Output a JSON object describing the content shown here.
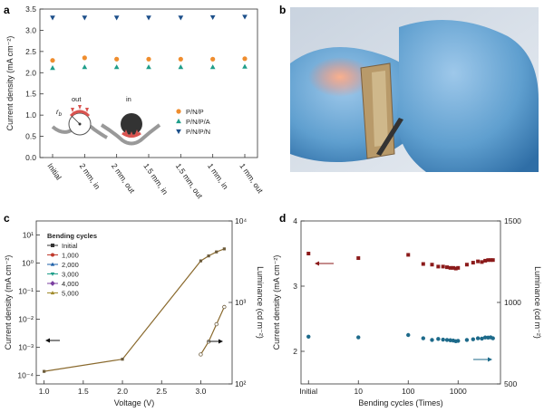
{
  "panels": {
    "a": "a",
    "b": "b",
    "c": "c",
    "d": "d"
  },
  "colors": {
    "orange": "#ef8d2e",
    "teal": "#1f9e8a",
    "navy": "#1c4f8a",
    "dark_red": "#8b1a1a",
    "steel_blue": "#1d6a8a",
    "olive": "#8f6a2b"
  },
  "chart_data": [
    {
      "panel": "a",
      "type": "scatter",
      "xlabel": "",
      "ylabel": "Current density (mA cm⁻²)",
      "ylim": [
        0.0,
        3.5
      ],
      "yticks": [
        "0.0",
        "0.5",
        "1.0",
        "1.5",
        "2.0",
        "2.5",
        "3.0",
        "3.5"
      ],
      "categories": [
        "Initial",
        "2 mm, in",
        "2 mm, out",
        "1.5 mm, in",
        "1.5 mm, out",
        "1 mm, in",
        "1 mm, out"
      ],
      "series": [
        {
          "name": "P/N/P",
          "color": "#ef8d2e",
          "marker": "circle",
          "values": [
            2.29,
            2.35,
            2.32,
            2.32,
            2.32,
            2.32,
            2.33
          ]
        },
        {
          "name": "P/N/P/A",
          "color": "#1f9e8a",
          "marker": "triangle-up",
          "values": [
            2.11,
            2.13,
            2.13,
            2.13,
            2.13,
            2.13,
            2.14
          ]
        },
        {
          "name": "P/N/P/N",
          "color": "#1c4f8a",
          "marker": "triangle-down",
          "values": [
            3.3,
            3.3,
            3.3,
            3.3,
            3.3,
            3.31,
            3.32
          ]
        }
      ],
      "legend_position": "right",
      "inset_labels": {
        "out": "out",
        "in": "in",
        "rb": "r",
        "rb_sub": "b"
      }
    },
    {
      "panel": "c",
      "type": "line",
      "xlabel": "Voltage (V)",
      "ylabel": "Current density (mA cm⁻²)",
      "ylabel_right": "Luminance (cd m⁻²)",
      "xlim": [
        0.9,
        3.4
      ],
      "xticks": [
        "1.0",
        "1.5",
        "2.0",
        "2.5",
        "3.0"
      ],
      "yscale": "log",
      "ylim_log": [
        -4.3,
        1.5
      ],
      "yticks_left": [
        "10⁻⁴",
        "10⁻³",
        "10⁻²",
        "10⁻¹",
        "10⁰",
        "10¹"
      ],
      "yticks_right": [
        "10²",
        "10³",
        "10⁴"
      ],
      "legend_title": "Bending cycles",
      "series": [
        {
          "name": "Initial",
          "color": "#333333"
        },
        {
          "name": "1,000",
          "color": "#c0392b"
        },
        {
          "name": "2,000",
          "color": "#1c5fa8"
        },
        {
          "name": "3,000",
          "color": "#1f9e8a"
        },
        {
          "name": "4,000",
          "color": "#7b3fa0"
        },
        {
          "name": "5,000",
          "color": "#a08a2a"
        }
      ],
      "current_density": {
        "x": [
          1.0,
          2.0,
          3.0,
          3.1,
          3.2,
          3.3
        ],
        "y": [
          0.00014,
          0.00038,
          1.2,
          1.8,
          2.5,
          3.2
        ]
      },
      "luminance": {
        "x": [
          3.0,
          3.1,
          3.2,
          3.3
        ],
        "y": [
          230,
          330,
          540,
          880
        ]
      },
      "ylim_right_log": [
        2,
        4
      ]
    },
    {
      "panel": "d",
      "type": "scatter",
      "xlabel": "Bending cycles (Times)",
      "ylabel": "Current density (mA cm⁻²)",
      "ylabel_right": "Luminance (cd m⁻²)",
      "xscale": "log",
      "xticks": [
        "Initial",
        "10",
        "100",
        "1000"
      ],
      "ylim": [
        1.5,
        4.0
      ],
      "yticks_left": [
        "2",
        "3",
        "4"
      ],
      "ylim_right": [
        500,
        1500
      ],
      "yticks_right": [
        "500",
        "1000",
        "1500"
      ],
      "series": [
        {
          "name": "Current density",
          "color": "#8b1a1a",
          "marker": "square",
          "x": [
            1,
            10,
            100,
            200,
            300,
            400,
            500,
            600,
            700,
            800,
            900,
            1000,
            1500,
            2000,
            2500,
            3000,
            3500,
            4000,
            4500,
            5000
          ],
          "y": [
            3.5,
            3.43,
            3.48,
            3.34,
            3.33,
            3.3,
            3.3,
            3.29,
            3.28,
            3.28,
            3.27,
            3.28,
            3.33,
            3.36,
            3.38,
            3.37,
            3.39,
            3.4,
            3.4,
            3.4
          ]
        },
        {
          "name": "Luminance",
          "color": "#1d6a8a",
          "marker": "circle",
          "x": [
            1,
            10,
            100,
            200,
            300,
            400,
            500,
            600,
            700,
            800,
            900,
            1000,
            1500,
            2000,
            2500,
            3000,
            3500,
            4000,
            4500,
            5000
          ],
          "y": [
            790,
            786,
            800,
            780,
            770,
            776,
            772,
            770,
            768,
            766,
            762,
            764,
            770,
            774,
            780,
            778,
            785,
            784,
            786,
            780
          ]
        }
      ]
    }
  ]
}
